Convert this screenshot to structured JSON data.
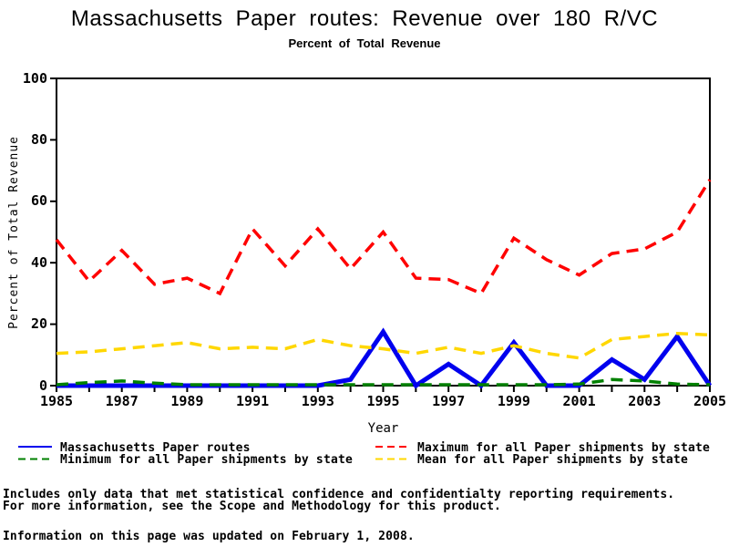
{
  "title": "Massachusetts Paper routes: Revenue over 180 R/VC",
  "subtitle": "Percent of Total Revenue",
  "colors": {
    "massachusetts_line": "#0000ee",
    "maximum_line": "#ff0000",
    "minimum_line": "#008000",
    "mean_line": "#ffd700",
    "axis": "#000000",
    "background": "#ffffff"
  },
  "chart_data": {
    "type": "line",
    "title": "Massachusetts Paper routes: Revenue over 180 R/VC",
    "subtitle": "Percent of Total Revenue",
    "xlabel": "Year",
    "ylabel": "Percent of Total Revenue",
    "xlim": [
      1985,
      2005
    ],
    "ylim": [
      0,
      100
    ],
    "yticks": [
      0,
      20,
      40,
      60,
      80,
      100
    ],
    "xtick_every_year": true,
    "xtick_label_step": 2,
    "grid": false,
    "legend_position": "bottom-two-columns",
    "x": [
      1985,
      1986,
      1987,
      1988,
      1989,
      1990,
      1991,
      1992,
      1993,
      1994,
      1995,
      1996,
      1997,
      1998,
      1999,
      2000,
      2001,
      2002,
      2003,
      2004,
      2005
    ],
    "series": [
      {
        "name": "Massachusetts Paper routes",
        "color": "#0000ee",
        "style": "solid",
        "values": [
          0,
          0,
          0,
          0,
          0,
          0,
          0,
          0,
          0,
          2,
          17.5,
          0,
          7,
          0,
          14,
          0,
          0,
          8.5,
          2,
          16,
          0
        ]
      },
      {
        "name": "Maximum for all Paper shipments by state",
        "color": "#ff0000",
        "style": "dashed",
        "values": [
          47.5,
          34,
          44,
          33,
          35,
          30,
          51,
          39,
          51,
          38,
          50,
          35,
          34.5,
          30,
          48,
          41,
          36,
          43,
          44.5,
          50,
          67
        ]
      },
      {
        "name": "Minimum for all Paper shipments by state",
        "color": "#008000",
        "style": "dashed",
        "values": [
          0.3,
          1,
          1.5,
          0.8,
          0.3,
          0.3,
          0.3,
          0.3,
          0.3,
          0.3,
          0.3,
          0.3,
          0.3,
          0.3,
          0.3,
          0.3,
          0.5,
          2,
          1.5,
          0.5,
          0.3
        ]
      },
      {
        "name": "Mean for all Paper shipments by state",
        "color": "#ffd700",
        "style": "dashed",
        "values": [
          10.5,
          11,
          12,
          13,
          14,
          12,
          12.5,
          12,
          15,
          13,
          12,
          10.5,
          12.5,
          10.5,
          13,
          10.5,
          9,
          15,
          16,
          17,
          16.5
        ]
      }
    ],
    "draw_order": [
      1,
      0,
      3,
      2
    ],
    "legend_columns": [
      [
        0,
        2
      ],
      [
        1,
        3
      ]
    ]
  },
  "footer": {
    "line1": "Includes only data that met statistical confidence and confidentialty reporting requirements.",
    "line2": "For more information, see the Scope and Methodology for this product.",
    "line3": "Information on this page was updated on February 1, 2008."
  }
}
